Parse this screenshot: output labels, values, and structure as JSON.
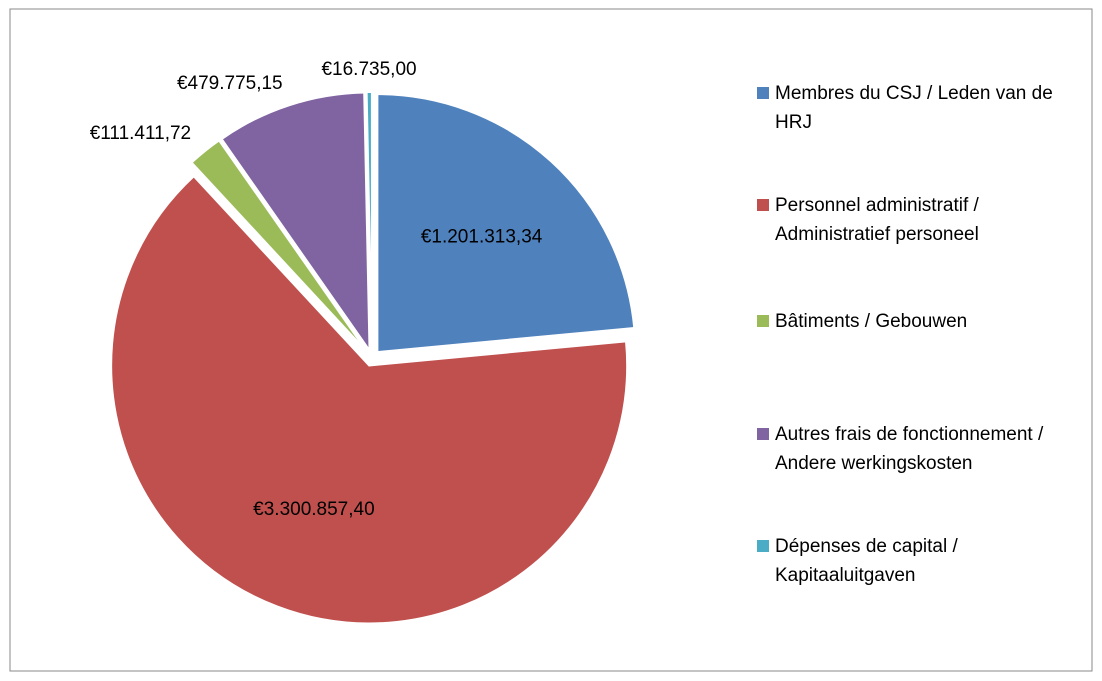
{
  "chart_data": {
    "type": "pie",
    "categories": [
      "Membres du CSJ / Leden van de HRJ",
      "Personnel administratif / Administratief personeel",
      "Bâtiments / Gebouwen",
      "Autres frais de fonctionnement / Andere werkingskosten",
      "Dépenses de capital / Kapitaaluitgaven"
    ],
    "values": [
      1201313.34,
      3300857.4,
      111411.72,
      479775.15,
      16735.0
    ],
    "value_labels": [
      "€1.201.313,34",
      "€3.300.857,40",
      "€111.411,72",
      "€479.775,15",
      "€16.735,00"
    ],
    "colors": [
      "#4f81bd",
      "#c0504d",
      "#9bbb59",
      "#8064a2",
      "#4bacc6"
    ],
    "legend": "right"
  }
}
